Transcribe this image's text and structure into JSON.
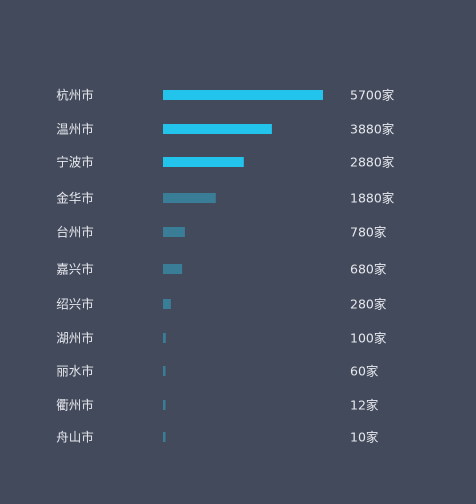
{
  "chart_data": {
    "type": "bar",
    "orientation": "horizontal",
    "categories": [
      "杭州市",
      "温州市",
      "宁波市",
      "金华市",
      "台州市",
      "嘉兴市",
      "绍兴市",
      "湖州市",
      "丽水市",
      "衢州市",
      "舟山市"
    ],
    "values": [
      5700,
      3880,
      2880,
      1880,
      780,
      680,
      280,
      100,
      60,
      12,
      10
    ],
    "value_labels": [
      "5700家",
      "3880家",
      "2880家",
      "1880家",
      "780家",
      "680家",
      "280家",
      "100家",
      "60家",
      "12家",
      "10家"
    ],
    "title": "",
    "xlabel": "",
    "ylabel": "",
    "grid": false,
    "highlight_count": 3,
    "colors": {
      "background": "#434a5b",
      "highlight": "#22c4ec",
      "normal": "#3a7d96",
      "text": "#e6e8ee"
    }
  }
}
